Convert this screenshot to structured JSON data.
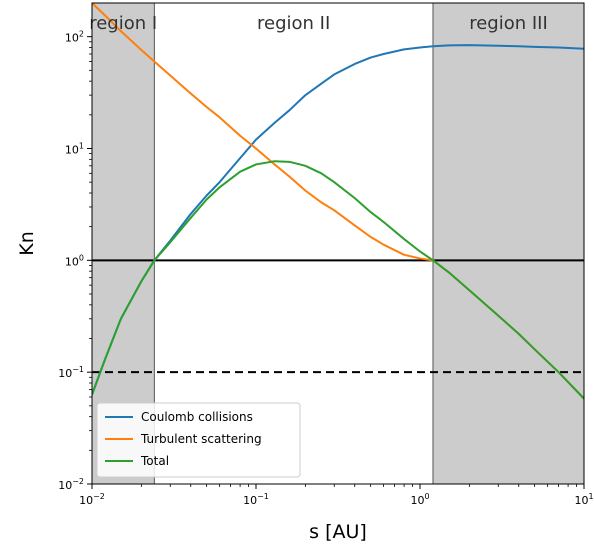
{
  "chart_data": {
    "type": "line",
    "xscale": "log",
    "yscale": "log",
    "xlim": [
      0.01,
      10
    ],
    "ylim": [
      0.01,
      200
    ],
    "xlabel": "s [AU]",
    "ylabel": "Kn",
    "x_ticks": [
      {
        "value": 0.01,
        "base": "10",
        "exp": "−2"
      },
      {
        "value": 0.1,
        "base": "10",
        "exp": "−1"
      },
      {
        "value": 1,
        "base": "10",
        "exp": "0"
      },
      {
        "value": 10,
        "base": "10",
        "exp": "1"
      }
    ],
    "y_ticks": [
      {
        "value": 0.01,
        "base": "10",
        "exp": "−2"
      },
      {
        "value": 0.1,
        "base": "10",
        "exp": "−1"
      },
      {
        "value": 1,
        "base": "10",
        "exp": "0"
      },
      {
        "value": 10,
        "base": "10",
        "exp": "1"
      },
      {
        "value": 100,
        "base": "10",
        "exp": "2"
      }
    ],
    "regions": [
      {
        "label": "region I",
        "x_start": 0.01,
        "x_end": 0.024,
        "shaded": true,
        "color": "#cccccc"
      },
      {
        "label": "region II",
        "x_start": 0.024,
        "x_end": 1.2,
        "shaded": false,
        "color": "#ffffff"
      },
      {
        "label": "region III",
        "x_start": 1.2,
        "x_end": 10,
        "shaded": true,
        "color": "#cccccc"
      }
    ],
    "reference_lines": [
      {
        "y": 1,
        "style": "solid",
        "color": "#000000"
      },
      {
        "y": 0.1,
        "style": "dashed",
        "color": "#000000"
      }
    ],
    "series": [
      {
        "name": "Coulomb collisions",
        "color": "#1f77b4",
        "x": [
          0.01,
          0.012,
          0.015,
          0.02,
          0.024,
          0.03,
          0.04,
          0.05,
          0.06,
          0.08,
          0.1,
          0.13,
          0.16,
          0.2,
          0.25,
          0.3,
          0.4,
          0.5,
          0.6,
          0.8,
          1.0,
          1.2,
          1.5,
          2,
          3,
          4,
          5,
          7,
          10
        ],
        "y": [
          0.063,
          0.13,
          0.3,
          0.65,
          1.0,
          1.5,
          2.6,
          3.8,
          5.0,
          8.2,
          12,
          17,
          22,
          30,
          38,
          46,
          57,
          65,
          70,
          77,
          80,
          82,
          83.5,
          84,
          83,
          82,
          81,
          80,
          78
        ]
      },
      {
        "name": "Turbulent scattering",
        "color": "#ff7f0e",
        "x": [
          0.01,
          0.012,
          0.015,
          0.02,
          0.024,
          0.03,
          0.04,
          0.05,
          0.06,
          0.08,
          0.1,
          0.13,
          0.16,
          0.2,
          0.25,
          0.3,
          0.4,
          0.5,
          0.6,
          0.8,
          1.0,
          1.2,
          1.5,
          2,
          3,
          4,
          5,
          7,
          10
        ],
        "y": [
          200,
          155,
          112,
          76,
          60,
          45,
          31,
          23.5,
          19,
          13,
          10,
          7.2,
          5.6,
          4.2,
          3.3,
          2.8,
          2.05,
          1.62,
          1.38,
          1.12,
          1.04,
          1.0,
          0.78,
          0.54,
          0.32,
          0.22,
          0.16,
          0.1,
          0.058
        ]
      },
      {
        "name": "Total",
        "color": "#2ca02c",
        "x": [
          0.01,
          0.012,
          0.015,
          0.02,
          0.024,
          0.03,
          0.04,
          0.05,
          0.06,
          0.08,
          0.1,
          0.13,
          0.16,
          0.2,
          0.25,
          0.3,
          0.4,
          0.5,
          0.6,
          0.8,
          1.0,
          1.2,
          1.5,
          2,
          3,
          4,
          5,
          7,
          10
        ],
        "y": [
          0.063,
          0.13,
          0.3,
          0.65,
          1.0,
          1.45,
          2.4,
          3.5,
          4.5,
          6.2,
          7.2,
          7.7,
          7.6,
          7.0,
          6.0,
          5.0,
          3.6,
          2.7,
          2.2,
          1.55,
          1.2,
          1.0,
          0.78,
          0.54,
          0.32,
          0.22,
          0.16,
          0.1,
          0.058
        ]
      }
    ],
    "legend": {
      "position": "lower-left"
    }
  }
}
